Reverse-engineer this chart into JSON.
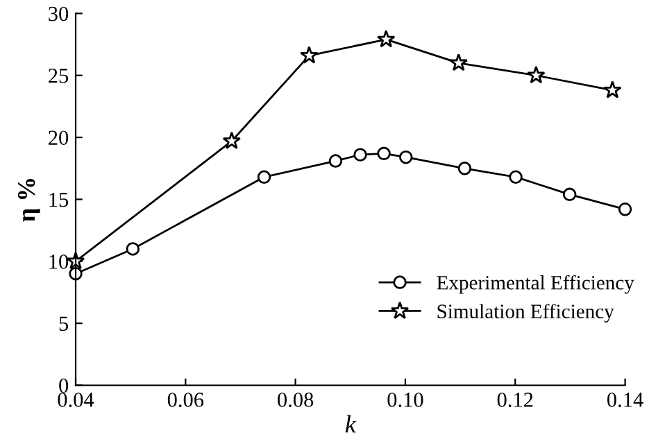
{
  "chart_data": {
    "type": "line",
    "xlabel": "k",
    "ylabel": "η %",
    "series": [
      {
        "name": "Experimental Efficiency",
        "color": "#000000",
        "marker": "circle",
        "x": [
          0.04,
          0.0504,
          0.0743,
          0.0873,
          0.0918,
          0.0961,
          0.1001,
          0.1108,
          0.1201,
          0.1299,
          0.14
        ],
        "values": [
          9.0,
          11.0,
          16.8,
          18.1,
          18.6,
          18.7,
          18.4,
          17.5,
          16.8,
          15.4,
          14.2
        ]
      },
      {
        "name": "Simulation Efficiency",
        "color": "#000000",
        "marker": "star",
        "x": [
          0.04,
          0.0684,
          0.0825,
          0.0965,
          0.1097,
          0.1238,
          0.1377
        ],
        "values": [
          10.0,
          19.7,
          26.6,
          27.9,
          26.0,
          25.0,
          23.8
        ]
      }
    ],
    "xlim": [
      0.04,
      0.14
    ],
    "xticks": [
      0.04,
      0.06,
      0.08,
      {
        "value": 0.1,
        "label": "0.10"
      },
      0.12,
      0.14
    ],
    "ylim": [
      0,
      30
    ],
    "yticks": [
      0,
      5,
      10,
      15,
      20,
      25,
      30
    ],
    "grid": false,
    "legend": "bottom right",
    "line_style": "solid"
  }
}
